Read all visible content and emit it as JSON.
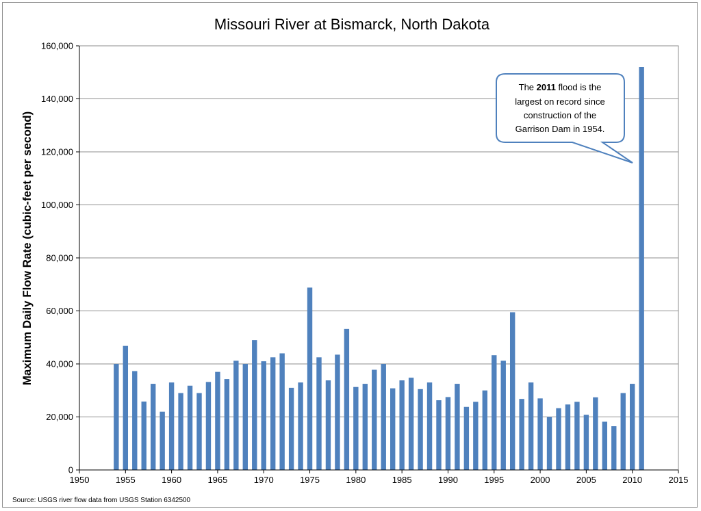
{
  "chart_data": {
    "type": "bar",
    "title": "Missouri River at Bismarck, North Dakota",
    "ylabel": "Maximum Daily Flow Rate (cubic-feet per second)",
    "xlabel": "",
    "xlim": [
      1950,
      2015
    ],
    "ylim": [
      0,
      160000
    ],
    "x_ticks": [
      "1950",
      "1955",
      "1960",
      "1965",
      "1970",
      "1975",
      "1980",
      "1985",
      "1990",
      "1995",
      "2000",
      "2005",
      "2010",
      "2015"
    ],
    "y_ticks": [
      "0",
      "20,000",
      "40,000",
      "60,000",
      "80,000",
      "100,000",
      "120,000",
      "140,000",
      "160,000"
    ],
    "grid": true,
    "legend": "none",
    "bar_color": "#4f81bd",
    "years": [
      1954,
      1955,
      1956,
      1957,
      1958,
      1959,
      1960,
      1961,
      1962,
      1963,
      1964,
      1965,
      1966,
      1967,
      1968,
      1969,
      1970,
      1971,
      1972,
      1973,
      1974,
      1975,
      1976,
      1977,
      1978,
      1979,
      1980,
      1981,
      1982,
      1983,
      1984,
      1985,
      1986,
      1987,
      1988,
      1989,
      1990,
      1991,
      1992,
      1993,
      1994,
      1995,
      1996,
      1997,
      1998,
      1999,
      2000,
      2001,
      2002,
      2003,
      2004,
      2005,
      2006,
      2007,
      2008,
      2009,
      2010,
      2011
    ],
    "values": [
      40000,
      46800,
      37300,
      25800,
      32500,
      22000,
      33000,
      29000,
      31800,
      29000,
      33200,
      37000,
      34300,
      41200,
      40000,
      49000,
      41000,
      42500,
      44000,
      31000,
      33000,
      68800,
      42500,
      33800,
      43500,
      53200,
      31300,
      32500,
      37800,
      40000,
      30800,
      33800,
      34800,
      30500,
      33000,
      26300,
      27500,
      32500,
      23800,
      25700,
      30000,
      43300,
      41200,
      59500,
      26800,
      33000,
      27000,
      20000,
      23300,
      24700,
      25700,
      20800,
      27400,
      18200,
      16500,
      29000,
      32500,
      152000
    ],
    "annotation": {
      "pre": "The ",
      "bold": "2011",
      "post": " flood is the",
      "line2": "largest on record since",
      "line3": "construction of the",
      "line4": "Garrison Dam in 1954."
    },
    "source": "Source: USGS river flow data from USGS Station 6342500"
  }
}
